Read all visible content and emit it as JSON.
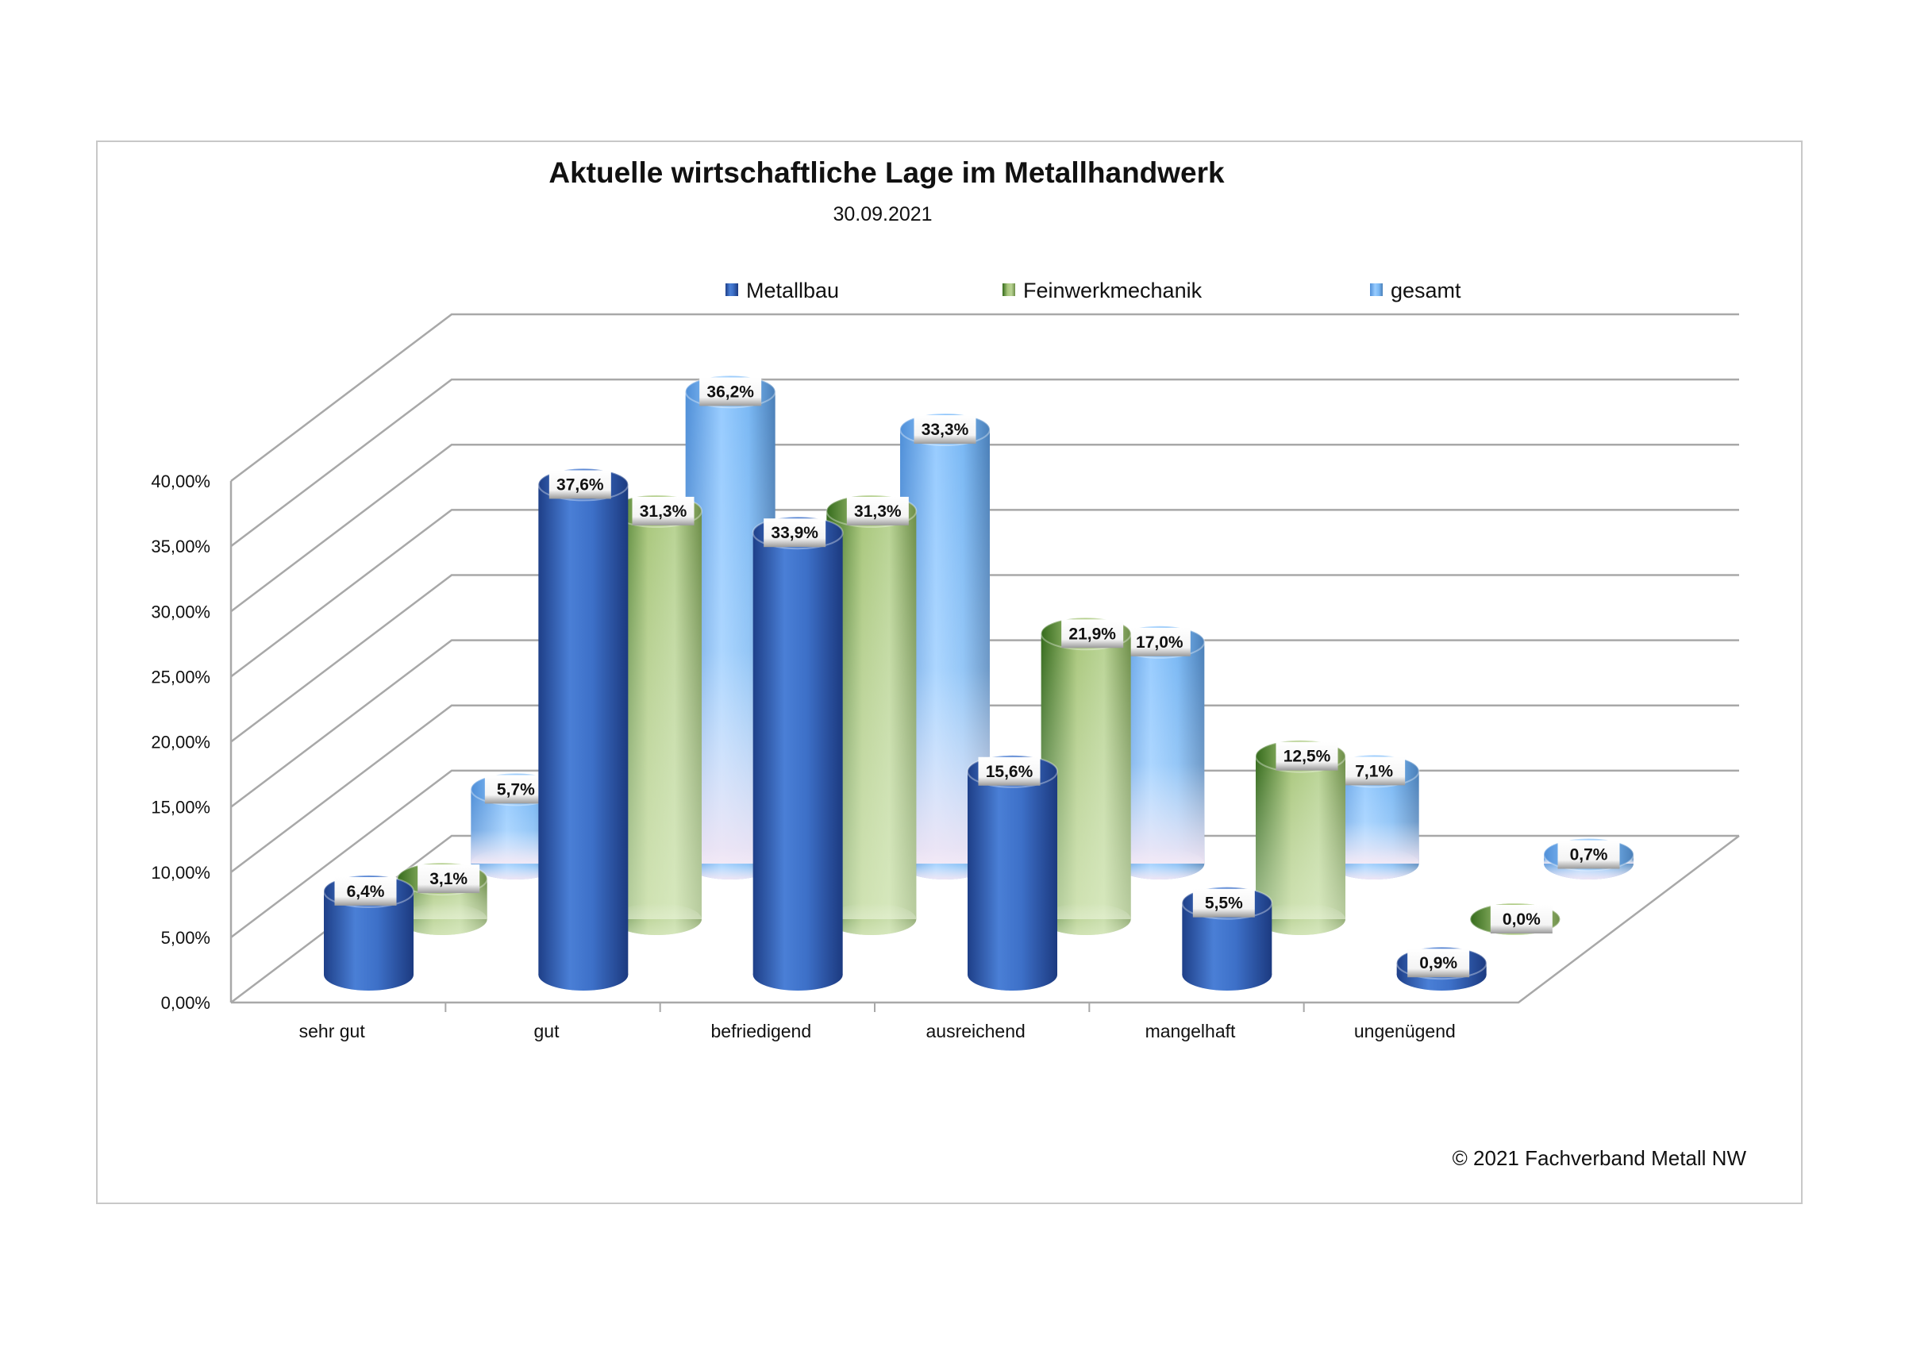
{
  "chart_data": {
    "type": "bar",
    "style": "3d-cylinder",
    "title": "Aktuelle wirtschaftliche Lage im Metallhandwerk",
    "subtitle": "30.09.2021",
    "categories": [
      "sehr gut",
      "gut",
      "befriedigend",
      "ausreichend",
      "mangelhaft",
      "ungenügend"
    ],
    "series": [
      {
        "name": "Metallbau",
        "values": [
          6.4,
          37.6,
          33.9,
          15.6,
          5.5,
          0.9
        ],
        "labels": [
          "6,4%",
          "37,6%",
          "33,9%",
          "15,6%",
          "5,5%",
          "0,9%"
        ],
        "color": "#3a68c0"
      },
      {
        "name": "Feinwerkmechanik",
        "values": [
          3.1,
          31.3,
          31.3,
          21.9,
          12.5,
          0.0
        ],
        "labels": [
          "3,1%",
          "31,3%",
          "31,3%",
          "21,9%",
          "12,5%",
          "0,0%"
        ],
        "color": "#5d8f34"
      },
      {
        "name": "gesamt",
        "values": [
          5.7,
          36.2,
          33.3,
          17.0,
          7.1,
          0.7
        ],
        "labels": [
          "5,7%",
          "36,2%",
          "33,3%",
          "17,0%",
          "7,1%",
          "0,7%"
        ],
        "color": "#6fb0ee"
      }
    ],
    "yticks": [
      "0,00%",
      "5,00%",
      "10,00%",
      "15,00%",
      "20,00%",
      "25,00%",
      "30,00%",
      "35,00%",
      "40,00%"
    ],
    "ylim": [
      0,
      40
    ],
    "ystep": 5,
    "xlabel": "",
    "ylabel": "",
    "grid": true,
    "legend": "top-center"
  },
  "footer": {
    "copyright": "© 2021 Fachverband Metall NW"
  }
}
